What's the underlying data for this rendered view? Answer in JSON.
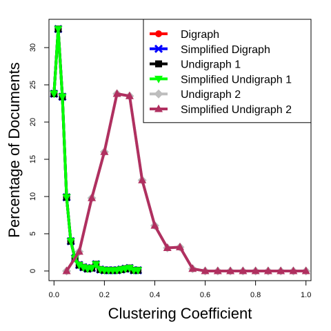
{
  "chart_data": {
    "type": "line",
    "xlabel": "Clustering Coefficient",
    "ylabel": "Percentage of Documents",
    "xlim": [
      -0.02,
      1.02
    ],
    "ylim": [
      -1.3,
      33.8
    ],
    "x_ticks": [
      "0.0",
      "0.2",
      "0.4",
      "0.6",
      "0.8",
      "1.0"
    ],
    "y_ticks": [
      "0",
      "5",
      "10",
      "15",
      "20",
      "25",
      "30"
    ],
    "grid": false,
    "legend_position": "top-right",
    "series": [
      {
        "name": "Digraph",
        "color": "#ff0000",
        "marker": "circle",
        "x": [
          0.0,
          0.0167,
          0.0333,
          0.05,
          0.0667,
          0.0833,
          0.1,
          0.1167,
          0.1333,
          0.15,
          0.1667,
          0.1833,
          0.2,
          0.2167,
          0.2333,
          0.25,
          0.2667,
          0.2833,
          0.3,
          0.3167,
          0.3333
        ],
        "y": [
          23.8,
          32.5,
          23.4,
          9.9,
          4.0,
          1.7,
          0.8,
          0.5,
          0.3,
          0.4,
          0.9,
          0.2,
          0.1,
          0.1,
          0.1,
          0.1,
          0.2,
          0.3,
          0.4,
          0.1,
          0.1
        ]
      },
      {
        "name": "Simplified Digraph",
        "color": "#0000ff",
        "marker": "x",
        "x": [
          0.0,
          0.0167,
          0.0333,
          0.05,
          0.0667,
          0.0833,
          0.1,
          0.1167,
          0.1333,
          0.15,
          0.1667,
          0.1833,
          0.2,
          0.2167,
          0.2333,
          0.25,
          0.2667,
          0.2833,
          0.3,
          0.3167,
          0.3333
        ],
        "y": [
          23.8,
          32.5,
          23.4,
          9.9,
          4.0,
          1.7,
          0.8,
          0.5,
          0.3,
          0.4,
          0.9,
          0.2,
          0.1,
          0.1,
          0.1,
          0.1,
          0.2,
          0.3,
          0.4,
          0.1,
          0.1
        ]
      },
      {
        "name": "Undigraph 1",
        "color": "#000000",
        "marker": "square",
        "x": [
          0.0,
          0.0167,
          0.0333,
          0.05,
          0.0667,
          0.0833,
          0.1,
          0.1167,
          0.1333,
          0.15,
          0.1667,
          0.1833,
          0.2,
          0.2167,
          0.2333,
          0.25,
          0.2667,
          0.2833,
          0.3,
          0.3167,
          0.3333
        ],
        "y": [
          23.8,
          32.5,
          23.4,
          9.9,
          4.0,
          1.7,
          0.8,
          0.5,
          0.3,
          0.4,
          0.9,
          0.2,
          0.1,
          0.1,
          0.1,
          0.1,
          0.2,
          0.3,
          0.4,
          0.1,
          0.1
        ]
      },
      {
        "name": "Simplified Undigraph 1",
        "color": "#00ff00",
        "marker": "triangle-down",
        "x": [
          0.0,
          0.0167,
          0.0333,
          0.05,
          0.0667,
          0.0833,
          0.1,
          0.1167,
          0.1333,
          0.15,
          0.1667,
          0.1833,
          0.2,
          0.2167,
          0.2333,
          0.25,
          0.2667,
          0.2833,
          0.3,
          0.3167,
          0.3333
        ],
        "y": [
          23.8,
          32.5,
          23.4,
          9.9,
          4.0,
          1.7,
          0.8,
          0.5,
          0.3,
          0.4,
          0.9,
          0.2,
          0.1,
          0.1,
          0.1,
          0.1,
          0.2,
          0.3,
          0.4,
          0.1,
          0.1
        ]
      },
      {
        "name": "Undigraph 2",
        "color": "#bebebe",
        "marker": "diamond",
        "x": [
          0.05,
          0.1,
          0.15,
          0.2,
          0.25,
          0.3,
          0.35,
          0.4,
          0.45,
          0.5,
          0.55,
          0.6,
          0.65,
          0.7,
          0.75,
          0.8,
          0.85,
          0.9,
          0.95,
          1.0
        ],
        "y": [
          0.0,
          2.6,
          9.8,
          16.0,
          23.8,
          23.5,
          12.2,
          6.1,
          3.1,
          3.2,
          0.3,
          0.0,
          0.0,
          0.0,
          0.0,
          0.0,
          0.0,
          0.0,
          0.0,
          0.0
        ]
      },
      {
        "name": "Simplified Undigraph 2",
        "color": "#b03060",
        "marker": "triangle-up",
        "x": [
          0.05,
          0.1,
          0.15,
          0.2,
          0.25,
          0.3,
          0.35,
          0.4,
          0.45,
          0.5,
          0.55,
          0.6,
          0.65,
          0.7,
          0.75,
          0.8,
          0.85,
          0.9,
          0.95,
          1.0
        ],
        "y": [
          0.0,
          2.6,
          9.8,
          16.0,
          23.8,
          23.5,
          12.2,
          6.1,
          3.1,
          3.2,
          0.3,
          0.0,
          0.0,
          0.0,
          0.0,
          0.0,
          0.0,
          0.0,
          0.0,
          0.0
        ]
      }
    ]
  }
}
